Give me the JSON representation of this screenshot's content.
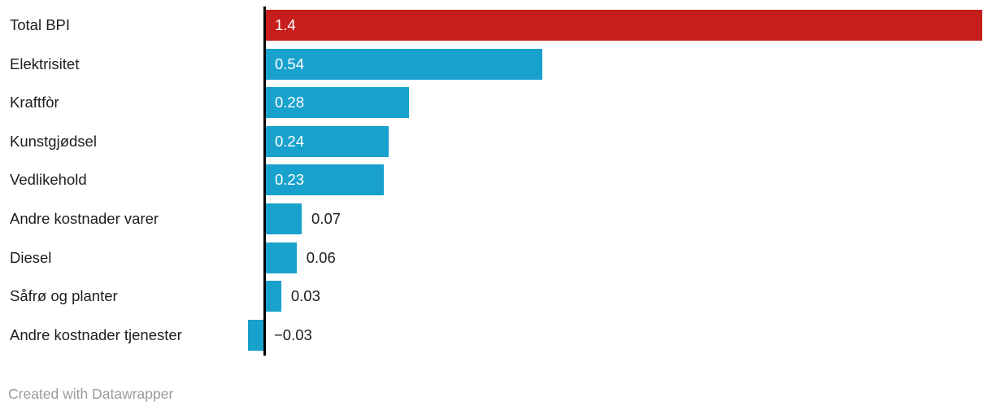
{
  "chart_data": {
    "type": "bar",
    "orientation": "horizontal",
    "categories": [
      "Total BPI",
      "Elektrisitet",
      "Kraftfòr",
      "Kunstgjødsel",
      "Vedlikehold",
      "Andre kostnader varer",
      "Diesel",
      "Såfrø og planter",
      "Andre kostnader tjenester"
    ],
    "values": [
      1.4,
      0.54,
      0.28,
      0.24,
      0.23,
      0.07,
      0.06,
      0.03,
      -0.03
    ],
    "value_labels": [
      "1.4",
      "0.54",
      "0.28",
      "0.24",
      "0.23",
      "0.07",
      "0.06",
      "0.03",
      "−0.03"
    ],
    "bar_colors": [
      "#c71e1d",
      "#18a1cd",
      "#18a1cd",
      "#18a1cd",
      "#18a1cd",
      "#18a1cd",
      "#18a1cd",
      "#18a1cd",
      "#18a1cd"
    ],
    "highlight_index": 0,
    "xlim": [
      0,
      1.4
    ],
    "baseline": 0,
    "grid": false,
    "legend": "none"
  },
  "colors": {
    "highlight_red": "#c71e1d",
    "bar_blue": "#18a1cd",
    "axis_black": "#000000",
    "label_text": "#1d1d1d",
    "value_inside_text": "#ffffff",
    "attribution_gray": "#9b9b9b",
    "background": "#ffffff"
  },
  "attribution": {
    "label": "Created with Datawrapper"
  }
}
